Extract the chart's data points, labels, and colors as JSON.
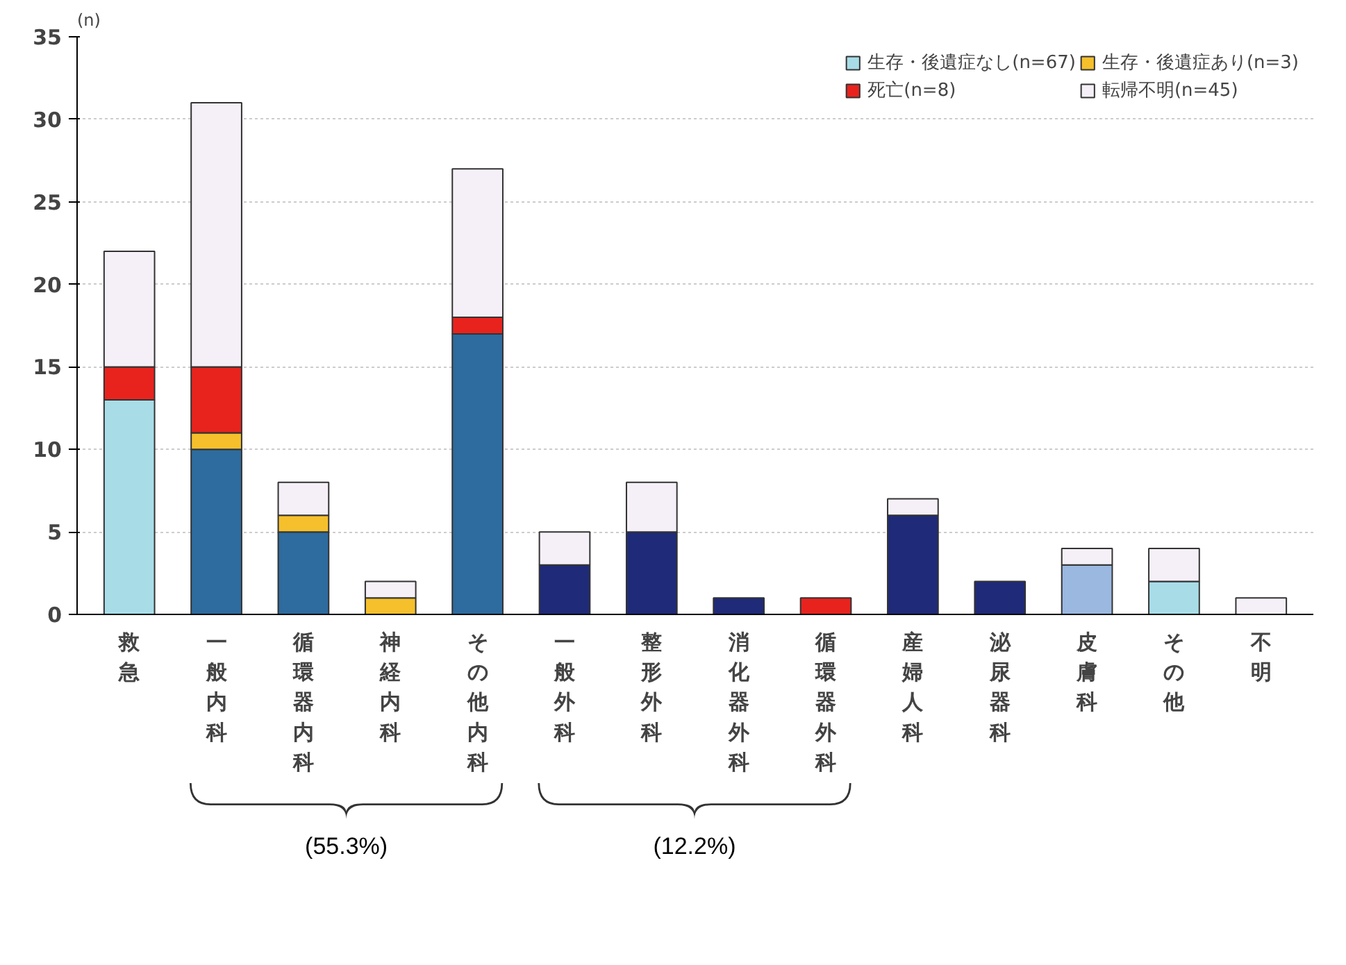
{
  "chart_data": {
    "type": "bar",
    "stacked": true,
    "categories": [
      "救急",
      "一般内科",
      "循環器内科",
      "神経内科",
      "その他内科",
      "一般外科",
      "整形外科",
      "消化器外科",
      "循環器外科",
      "産婦人科",
      "泌尿器科",
      "皮膚科",
      "その他",
      "不明"
    ],
    "series": [
      {
        "name": "生存・後遺症なし(n=67)",
        "color": "#a8dde8",
        "colors": [
          "#a8dde8",
          "#2e6b9e",
          "#2e6b9e",
          "#2e6b9e",
          "#2e6b9e",
          "#1f2a78",
          "#1f2a78",
          "#1f2a78",
          "#1f2a78",
          "#1f2a78",
          "#1f2a78",
          "#9ab8e0",
          "#a8dde8",
          "#a8dde8"
        ],
        "values": [
          13,
          10,
          5,
          0,
          17,
          3,
          5,
          1,
          0,
          6,
          2,
          3,
          2,
          0
        ]
      },
      {
        "name": "生存・後遺症あり(n=3)",
        "color": "#f5c02c",
        "values": [
          0,
          1,
          1,
          1,
          0,
          0,
          0,
          0,
          0,
          0,
          0,
          0,
          0,
          0
        ]
      },
      {
        "name": "死亡(n=8)",
        "color": "#e8231e",
        "values": [
          2,
          4,
          0,
          0,
          1,
          0,
          0,
          0,
          1,
          0,
          0,
          0,
          0,
          0
        ]
      },
      {
        "name": "転帰不明(n=45)",
        "color": "#f5f0f7",
        "values": [
          7,
          16,
          2,
          1,
          9,
          2,
          3,
          0,
          0,
          1,
          0,
          1,
          2,
          1
        ]
      }
    ],
    "ylim": [
      0,
      35
    ],
    "yticks": [
      0,
      5,
      10,
      15,
      20,
      25,
      30,
      35
    ],
    "grid": "y",
    "legend": "top right",
    "annotations": [
      "(n)",
      "(55.3%)",
      "(12.2%)"
    ]
  }
}
